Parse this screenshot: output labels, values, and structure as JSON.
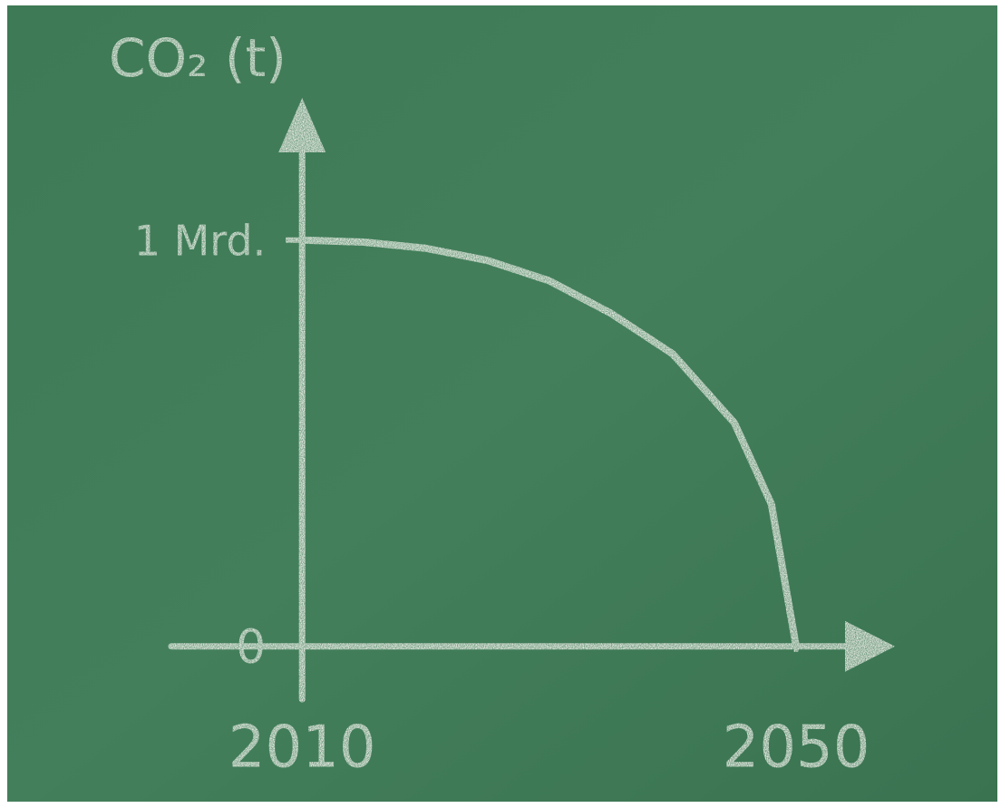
{
  "chart_data": {
    "type": "line",
    "y_label": "CO₂ (t)",
    "x": [
      2010,
      2015,
      2020,
      2025,
      2030,
      2035,
      2040,
      2045,
      2048,
      2050
    ],
    "values": [
      1000000000,
      995000000,
      980000000,
      950000000,
      900000000,
      820000000,
      720000000,
      550000000,
      350000000,
      0
    ],
    "color": "#f4f4ee",
    "xlim": [
      2000,
      2058
    ],
    "ylim": [
      -130000000,
      1350000000
    ],
    "xticks": [
      2010,
      2050
    ],
    "yticks": [
      0,
      {
        "value": 1000000000,
        "label": "1 Mrd."
      }
    ],
    "grid": false
  }
}
